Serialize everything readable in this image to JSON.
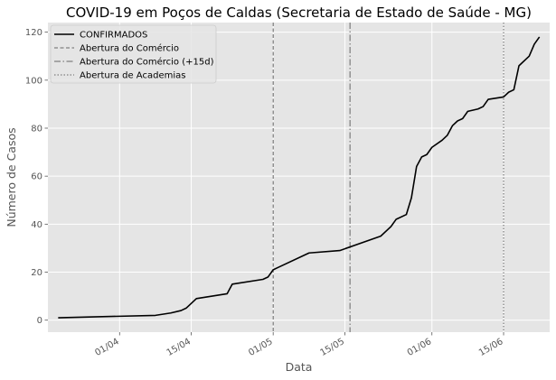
{
  "chart_data": {
    "type": "line",
    "title": "COVID-19 em Poços de Caldas (Secretaria de Estado de Saúde - MG)",
    "xlabel": "Data",
    "ylabel": "Número de Casos",
    "xlim": [
      "2020-03-18",
      "2020-06-24"
    ],
    "ylim": [
      -5,
      124
    ],
    "x_ticks": [
      {
        "date": "2020-04-01",
        "label": "01/04"
      },
      {
        "date": "2020-04-15",
        "label": "15/04"
      },
      {
        "date": "2020-05-01",
        "label": "01/05"
      },
      {
        "date": "2020-05-15",
        "label": "15/05"
      },
      {
        "date": "2020-06-01",
        "label": "01/06"
      },
      {
        "date": "2020-06-15",
        "label": "15/06"
      }
    ],
    "y_ticks": [
      0,
      20,
      40,
      60,
      80,
      100,
      120
    ],
    "grid": true,
    "legend_position": "top-left",
    "series": [
      {
        "name": "CONFIRMADOS",
        "color": "#000000",
        "points": [
          {
            "x": "2020-03-20",
            "y": 1
          },
          {
            "x": "2020-04-08",
            "y": 2
          },
          {
            "x": "2020-04-11",
            "y": 3
          },
          {
            "x": "2020-04-13",
            "y": 4
          },
          {
            "x": "2020-04-14",
            "y": 5
          },
          {
            "x": "2020-04-16",
            "y": 9
          },
          {
            "x": "2020-04-22",
            "y": 11
          },
          {
            "x": "2020-04-23",
            "y": 15
          },
          {
            "x": "2020-04-29",
            "y": 17
          },
          {
            "x": "2020-04-30",
            "y": 18
          },
          {
            "x": "2020-05-01",
            "y": 21
          },
          {
            "x": "2020-05-02",
            "y": 22
          },
          {
            "x": "2020-05-08",
            "y": 28
          },
          {
            "x": "2020-05-14",
            "y": 29
          },
          {
            "x": "2020-05-22",
            "y": 35
          },
          {
            "x": "2020-05-24",
            "y": 39
          },
          {
            "x": "2020-05-25",
            "y": 42
          },
          {
            "x": "2020-05-27",
            "y": 44
          },
          {
            "x": "2020-05-28",
            "y": 51
          },
          {
            "x": "2020-05-29",
            "y": 64
          },
          {
            "x": "2020-05-30",
            "y": 68
          },
          {
            "x": "2020-05-31",
            "y": 69
          },
          {
            "x": "2020-06-01",
            "y": 72
          },
          {
            "x": "2020-06-03",
            "y": 75
          },
          {
            "x": "2020-06-04",
            "y": 77
          },
          {
            "x": "2020-06-05",
            "y": 81
          },
          {
            "x": "2020-06-06",
            "y": 83
          },
          {
            "x": "2020-06-07",
            "y": 84
          },
          {
            "x": "2020-06-08",
            "y": 87
          },
          {
            "x": "2020-06-10",
            "y": 88
          },
          {
            "x": "2020-06-11",
            "y": 89
          },
          {
            "x": "2020-06-12",
            "y": 92
          },
          {
            "x": "2020-06-15",
            "y": 93
          },
          {
            "x": "2020-06-16",
            "y": 95
          },
          {
            "x": "2020-06-17",
            "y": 96
          },
          {
            "x": "2020-06-18",
            "y": 106
          },
          {
            "x": "2020-06-20",
            "y": 110
          },
          {
            "x": "2020-06-21",
            "y": 115
          },
          {
            "x": "2020-06-22",
            "y": 118
          }
        ]
      }
    ],
    "events": [
      {
        "name": "Abertura do Comércio",
        "date": "2020-05-01",
        "style": "dashed",
        "color": "#666666"
      },
      {
        "name": "Abertura do Comércio (+15d)",
        "date": "2020-05-16",
        "style": "dashdot",
        "color": "#666666"
      },
      {
        "name": "Abertura de Academias",
        "date": "2020-06-15",
        "style": "dotted",
        "color": "#666666"
      }
    ]
  }
}
